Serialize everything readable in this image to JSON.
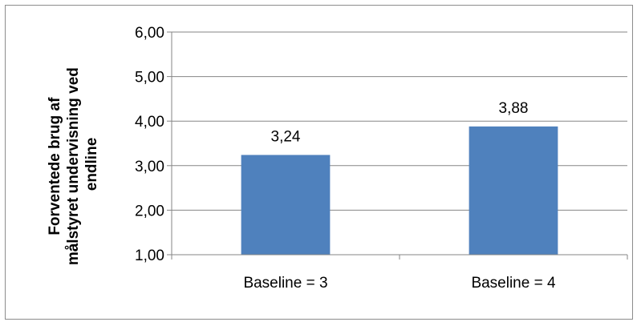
{
  "chart_data": {
    "type": "bar",
    "categories": [
      "Baseline = 3",
      "Baseline = 4"
    ],
    "values": [
      3.24,
      3.88
    ],
    "data_labels": [
      "3,24",
      "3,88"
    ],
    "ylabel_lines": [
      "Forventede brug af",
      "målstyret undervisning ved",
      "endline"
    ],
    "ylim": [
      1,
      6
    ],
    "yticks": [
      1,
      2,
      3,
      4,
      5,
      6
    ],
    "ytick_labels": [
      "1,00",
      "2,00",
      "3,00",
      "4,00",
      "5,00",
      "6,00"
    ],
    "grid": true,
    "bar_color": "#4f81bd",
    "grid_color": "#868686"
  }
}
